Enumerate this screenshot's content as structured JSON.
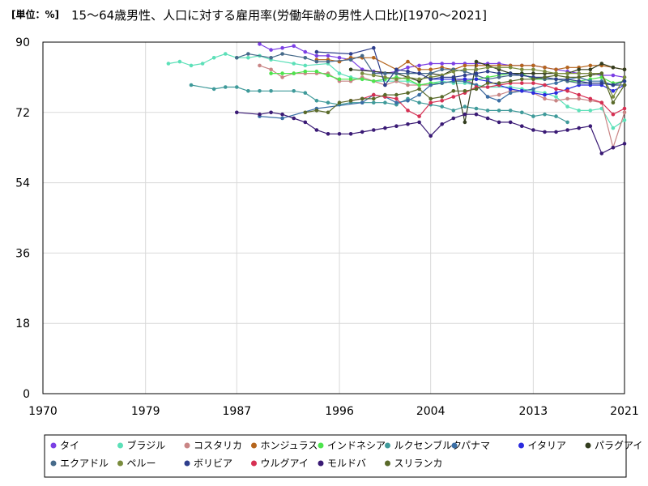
{
  "chart_data": {
    "type": "line",
    "title": "15～64歳男性、人口に対する雇用率(労働年齢の男性人口比)[1970～2021]",
    "unit_label": "[単位：%]",
    "xlabel": "",
    "ylabel": "",
    "xlim": [
      1970,
      2021
    ],
    "ylim": [
      0,
      90
    ],
    "x_ticks": [
      1970,
      1979,
      1987,
      1996,
      2004,
      2013,
      2021
    ],
    "y_ticks": [
      0,
      18,
      36,
      54,
      72,
      90
    ],
    "grid": true,
    "legend_position": "bottom",
    "series": [
      {
        "name": "タイ",
        "color": "#7b3fe4",
        "x": [
          1989,
          1990,
          1991,
          1992,
          1993,
          1994,
          1995,
          1996,
          1997,
          1998,
          1999,
          2000,
          2001,
          2002,
          2003,
          2004,
          2005,
          2006,
          2007,
          2008,
          2009,
          2010,
          2011,
          2012,
          2013,
          2014,
          2015,
          2016,
          2017,
          2018,
          2019,
          2020,
          2021
        ],
        "y": [
          89.5,
          88,
          88.5,
          89,
          87.5,
          86.5,
          86.5,
          86,
          85.5,
          83,
          82.5,
          82,
          82.5,
          83.5,
          84,
          84.5,
          84.5,
          84.5,
          84.5,
          84.5,
          84.5,
          84.5,
          84,
          84,
          84,
          83.5,
          83,
          82.5,
          82,
          82,
          81.5,
          81.5,
          81
        ]
      },
      {
        "name": "ブラジル",
        "color": "#5ce0b8",
        "x": [
          1981,
          1982,
          1983,
          1984,
          1985,
          1986,
          1987,
          1988,
          1989,
          1990,
          1992,
          1993,
          1995,
          1996,
          1997,
          1998,
          1999,
          2001,
          2002,
          2003,
          2004,
          2005,
          2006,
          2007,
          2008,
          2009,
          2011,
          2012,
          2013,
          2014,
          2015,
          2016,
          2017,
          2018,
          2019,
          2020,
          2021
        ],
        "y": [
          84.5,
          85,
          84,
          84.5,
          86,
          87,
          86,
          86,
          86.5,
          85.5,
          84.5,
          84,
          84.5,
          82,
          81,
          80.5,
          80,
          80,
          80,
          79,
          79.5,
          80,
          79.5,
          79.5,
          79,
          78.5,
          78.5,
          78,
          77.5,
          77,
          76,
          73.5,
          72.5,
          72.5,
          73,
          68,
          70
        ]
      },
      {
        "name": "コスタリカ",
        "color": "#c98585",
        "x": [
          1989,
          1990,
          1991,
          1992,
          1993,
          1994,
          1995,
          1996,
          1997,
          1998,
          1999,
          2000,
          2001,
          2002,
          2003,
          2004,
          2005,
          2006,
          2007,
          2008,
          2009,
          2010,
          2011,
          2012,
          2013,
          2014,
          2015,
          2016,
          2017,
          2018,
          2019,
          2020,
          2021
        ],
        "y": [
          84,
          83,
          81,
          82,
          82,
          82,
          82,
          80,
          80,
          81,
          80,
          79,
          80,
          79,
          79,
          79,
          79.5,
          80,
          80.5,
          79,
          76,
          76.5,
          77.5,
          77.5,
          77,
          75.5,
          75,
          75.5,
          75.5,
          75,
          74.5,
          63,
          72
        ]
      },
      {
        "name": "ホンジュラス",
        "color": "#b5651d",
        "x": [
          1994,
          1995,
          1996,
          1997,
          1998,
          1999,
          2001,
          2002,
          2003,
          2004,
          2005,
          2006,
          2007,
          2008,
          2009,
          2010,
          2011,
          2012,
          2013,
          2014,
          2015,
          2016,
          2017,
          2018,
          2019,
          2020,
          2021
        ],
        "y": [
          85.5,
          85.5,
          85,
          86,
          86,
          86,
          83,
          85,
          83,
          83,
          83.5,
          83,
          84,
          84,
          84,
          84,
          84,
          84,
          84,
          83.5,
          83,
          83.5,
          83.5,
          84,
          84,
          83.5,
          83
        ]
      },
      {
        "name": "インドネシア",
        "color": "#4ee44e",
        "x": [
          1990,
          1991,
          1992,
          1993,
          1994,
          1995,
          1996,
          1997,
          1998,
          1999,
          2000,
          2001,
          2002,
          2003,
          2004,
          2005,
          2006,
          2007,
          2008,
          2009,
          2010,
          2011,
          2012,
          2013,
          2014,
          2015,
          2016,
          2017,
          2018,
          2019,
          2020,
          2021
        ],
        "y": [
          82,
          82,
          82,
          82.5,
          82.5,
          81.5,
          80.5,
          80.5,
          80.5,
          80,
          80.5,
          81,
          80.5,
          79,
          79.5,
          79.5,
          80,
          80,
          80.5,
          81,
          81.5,
          82,
          82,
          80.5,
          80.5,
          80.5,
          80,
          80,
          80.5,
          81,
          79.5,
          80
        ]
      },
      {
        "name": "ルクセンブルク",
        "color": "#3f9a9a",
        "x": [
          1983,
          1985,
          1986,
          1987,
          1988,
          1989,
          1990,
          1992,
          1993,
          1994,
          1995,
          1996,
          1997,
          1998,
          1999,
          2000,
          2001,
          2002,
          2003,
          2004,
          2005,
          2006,
          2007,
          2008,
          2009,
          2010,
          2011,
          2012,
          2013,
          2014,
          2015,
          2016
        ],
        "y": [
          79,
          78,
          78.5,
          78.5,
          77.5,
          77.5,
          77.5,
          77.5,
          77,
          75,
          74.5,
          74,
          74.5,
          74.5,
          74.5,
          74.5,
          74,
          75.5,
          74.5,
          74,
          73.5,
          72.5,
          73.5,
          73,
          72.5,
          72.5,
          72.5,
          72,
          71,
          71.5,
          71,
          69.5
        ]
      },
      {
        "name": "パナマ",
        "color": "#3a6ea5",
        "x": [
          1989,
          1991,
          1994,
          1998,
          1999,
          2000,
          2001,
          2002,
          2003,
          2004,
          2005,
          2006,
          2007,
          2008,
          2009,
          2010,
          2011,
          2012,
          2013,
          2014,
          2015,
          2016,
          2017,
          2018,
          2019,
          2020,
          2021
        ],
        "y": [
          71,
          70.5,
          73,
          74.5,
          76.5,
          76,
          74.5,
          75,
          76.5,
          79,
          79.5,
          80,
          80,
          79,
          76,
          75,
          77,
          77.5,
          78,
          79,
          79.5,
          80.5,
          81,
          80,
          80,
          79,
          79
        ]
      },
      {
        "name": "イタリア",
        "color": "#2b2bdf",
        "x": [
          2004,
          2005,
          2006,
          2007,
          2008,
          2009,
          2010,
          2011,
          2012,
          2013,
          2014,
          2015,
          2016,
          2017,
          2018,
          2019,
          2020,
          2021
        ],
        "y": [
          80.5,
          80.5,
          80.5,
          80.5,
          80.5,
          80,
          79,
          78,
          77.5,
          77,
          76.5,
          77,
          78,
          79,
          79,
          79,
          77.5,
          79
        ]
      },
      {
        "name": "パラグアイ",
        "color": "#333d1f",
        "x": [
          1997,
          2001,
          2002,
          2003,
          2004,
          2005,
          2006,
          2007,
          2008,
          2009,
          2010,
          2011,
          2012,
          2013,
          2014,
          2015,
          2016,
          2017,
          2018,
          2019,
          2020,
          2021
        ],
        "y": [
          83,
          82,
          81,
          80,
          82,
          81.5,
          83,
          69.5,
          85,
          84,
          83,
          82,
          82,
          82,
          82,
          82,
          82,
          83,
          83,
          84.5,
          83.5,
          83
        ]
      },
      {
        "name": "エクアドル",
        "color": "#466a8a",
        "x": [
          1987,
          1988,
          1990,
          1991,
          1993,
          1994,
          1995,
          1997,
          1998,
          1999,
          2000,
          2001,
          2002,
          2003,
          2004,
          2005,
          2006,
          2007,
          2008,
          2009,
          2010,
          2011,
          2012,
          2013,
          2014,
          2015,
          2016,
          2017,
          2018,
          2019,
          2020,
          2021
        ],
        "y": [
          86,
          87,
          86,
          87,
          86,
          85,
          85,
          85.5,
          86.5,
          82,
          82,
          82,
          82,
          82,
          82,
          83,
          83,
          82.5,
          81.5,
          80.5,
          81,
          81.5,
          81.5,
          81,
          80.5,
          80.5,
          80,
          79.5,
          79.5,
          79.5,
          79,
          79
        ]
      },
      {
        "name": "ペルー",
        "color": "#7a8c3d",
        "x": [
          1998,
          1999,
          2000,
          2001,
          2002,
          2003,
          2004,
          2005,
          2006,
          2007,
          2008,
          2009,
          2010,
          2011,
          2012,
          2013,
          2014,
          2015,
          2016,
          2017,
          2018,
          2019,
          2020,
          2021
        ],
        "y": [
          82,
          81.5,
          81,
          80.5,
          81,
          80.5,
          81,
          81.5,
          82.5,
          83,
          83,
          83.5,
          83.5,
          83.5,
          83,
          83,
          82.5,
          82,
          82,
          82,
          82,
          82,
          76,
          81
        ]
      },
      {
        "name": "ボリビア",
        "color": "#2e3e8c",
        "x": [
          1994,
          1997,
          1999,
          2000,
          2001,
          2002,
          2003,
          2004,
          2005,
          2006,
          2007,
          2008,
          2009,
          2010,
          2011,
          2012,
          2013,
          2014,
          2015,
          2016,
          2017,
          2018,
          2019,
          2020,
          2021
        ],
        "y": [
          87.5,
          87,
          88.5,
          79,
          83,
          82.5,
          82,
          80.5,
          81,
          81,
          81.5,
          82,
          82.5,
          82,
          82,
          81.5,
          81,
          81,
          80.5,
          80.5,
          80,
          79.5,
          79.5,
          79,
          80
        ]
      },
      {
        "name": "ウルグアイ",
        "color": "#d63053",
        "x": [
          1997,
          1998,
          1999,
          2000,
          2001,
          2002,
          2003,
          2004,
          2005,
          2006,
          2007,
          2008,
          2009,
          2010,
          2011,
          2012,
          2013,
          2014,
          2015,
          2016,
          2017,
          2018,
          2019,
          2020,
          2021
        ],
        "y": [
          75,
          75.5,
          76.5,
          76,
          75.5,
          72.5,
          71,
          74.5,
          75,
          76,
          77,
          78.5,
          78.5,
          79,
          79.5,
          79.5,
          79.5,
          79,
          78,
          77.5,
          76.5,
          75.5,
          74.5,
          71.5,
          73
        ]
      },
      {
        "name": "モルドバ",
        "color": "#3a1a75",
        "x": [
          1987,
          1989,
          1990,
          1991,
          1992,
          1993,
          1994,
          1995,
          1996,
          1997,
          1998,
          1999,
          2000,
          2001,
          2002,
          2003,
          2004,
          2005,
          2006,
          2007,
          2008,
          2009,
          2010,
          2011,
          2012,
          2013,
          2014,
          2015,
          2016,
          2017,
          2018,
          2019,
          2020,
          2021
        ],
        "y": [
          72,
          71.5,
          72,
          71.5,
          70.5,
          69.5,
          67.5,
          66.5,
          66.5,
          66.5,
          67,
          67.5,
          68,
          68.5,
          69,
          69.5,
          66,
          69,
          70.5,
          71.5,
          71.5,
          70.5,
          69.5,
          69.5,
          68.5,
          67.5,
          67,
          67,
          67.5,
          68,
          68.5,
          61.5,
          63,
          64
        ]
      },
      {
        "name": "スリランカ",
        "color": "#5a6a2a",
        "x": [
          1993,
          1994,
          1995,
          1996,
          1997,
          1998,
          1999,
          2000,
          2001,
          2002,
          2003,
          2004,
          2005,
          2006,
          2007,
          2008,
          2009,
          2010,
          2011,
          2012,
          2013,
          2014,
          2015,
          2016,
          2017,
          2018,
          2019,
          2020,
          2021
        ],
        "y": [
          72,
          72.5,
          72,
          74.5,
          75,
          75.5,
          75.5,
          76.5,
          76.5,
          77,
          78,
          75.5,
          76,
          77.5,
          77.5,
          78,
          79.5,
          79.5,
          80,
          80.5,
          80.5,
          81,
          81.5,
          81,
          81,
          81.5,
          82,
          74.5,
          79
        ]
      }
    ]
  }
}
